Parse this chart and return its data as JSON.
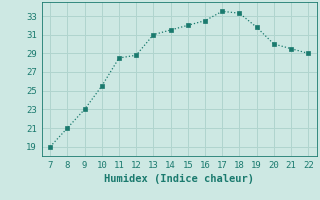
{
  "x": [
    7,
    8,
    9,
    10,
    11,
    12,
    13,
    14,
    15,
    16,
    17,
    18,
    19,
    20,
    21,
    22
  ],
  "y": [
    19.0,
    21.0,
    23.0,
    25.5,
    28.5,
    28.8,
    31.0,
    31.5,
    32.0,
    32.5,
    33.5,
    33.3,
    31.8,
    30.0,
    29.5,
    29.0
  ],
  "xlabel": "Humidex (Indice chaleur)",
  "xlim": [
    6.5,
    22.5
  ],
  "ylim": [
    18.0,
    34.5
  ],
  "yticks": [
    19,
    21,
    23,
    25,
    27,
    29,
    31,
    33
  ],
  "xticks": [
    7,
    8,
    9,
    10,
    11,
    12,
    13,
    14,
    15,
    16,
    17,
    18,
    19,
    20,
    21,
    22
  ],
  "line_color": "#1a7a6e",
  "marker_color": "#1a7a6e",
  "bg_color": "#cde8e3",
  "grid_color": "#b0d4ce",
  "xlabel_fontsize": 7.5,
  "tick_fontsize": 6.5
}
